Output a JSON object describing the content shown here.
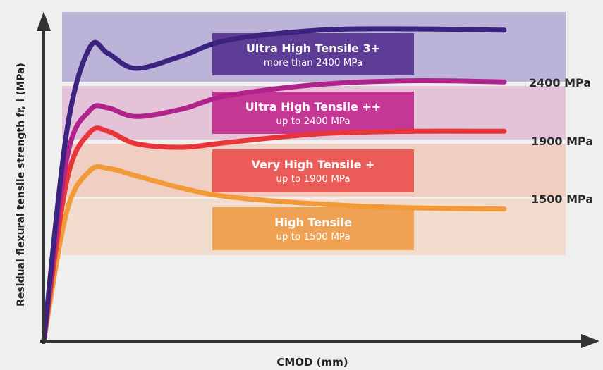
{
  "chart_data": {
    "type": "line",
    "title": "",
    "xlabel": "CMOD (mm)",
    "ylabel": "Residual flexural tensile strength fr, i (MPa)",
    "x_ticks": false,
    "y_ticks": false,
    "grid": false,
    "legend": "none",
    "thresholds": [
      {
        "label": "1500 MPa",
        "value": 1500
      },
      {
        "label": "1900 MPa",
        "value": 1900
      },
      {
        "label": "2400 MPa",
        "value": 2400
      }
    ],
    "bands": [
      {
        "title": "High Tensile",
        "subtitle": "up to 1500 MPa",
        "band_color": "#f1dccd",
        "box_color": "#f0a254"
      },
      {
        "title": "Very High Tensile +",
        "subtitle": "up to 1900 MPa",
        "band_color": "#f0cfc2",
        "box_color": "#eb5c59"
      },
      {
        "title": "Ultra High Tensile ++",
        "subtitle": "up to 2400 MPa",
        "band_color": "#e4c2d8",
        "box_color": "#c43795"
      },
      {
        "title": "Ultra High Tensile 3+",
        "subtitle": "more than 2400 MPa",
        "band_color": "#bbb4d8",
        "box_color": "#5d3d96"
      }
    ],
    "series": [
      {
        "color": "#f39a38",
        "x": [
          0,
          0.05,
          0.1,
          0.14,
          0.2,
          0.3,
          0.4,
          0.6,
          0.8,
          1.0
        ],
        "y": [
          0,
          1050,
          1380,
          1400,
          1340,
          1240,
          1170,
          1110,
          1080,
          1070
        ]
      },
      {
        "color": "#e8353a",
        "x": [
          0,
          0.05,
          0.1,
          0.14,
          0.2,
          0.3,
          0.4,
          0.6,
          0.8,
          1.0
        ],
        "y": [
          0,
          1300,
          1690,
          1700,
          1600,
          1570,
          1610,
          1680,
          1700,
          1700
        ]
      },
      {
        "color": "#b0238c",
        "x": [
          0,
          0.05,
          0.1,
          0.14,
          0.2,
          0.3,
          0.4,
          0.6,
          0.8,
          1.0
        ],
        "y": [
          0,
          1480,
          1870,
          1890,
          1820,
          1880,
          1990,
          2080,
          2110,
          2100
        ]
      },
      {
        "color": "#3b237f",
        "x": [
          0,
          0.05,
          0.1,
          0.14,
          0.2,
          0.3,
          0.4,
          0.6,
          0.8,
          1.0
        ],
        "y": [
          0,
          1700,
          2380,
          2330,
          2210,
          2310,
          2440,
          2520,
          2530,
          2520
        ]
      }
    ],
    "xlim": [
      0,
      1.0
    ],
    "ylim": [
      0,
      2650
    ]
  }
}
